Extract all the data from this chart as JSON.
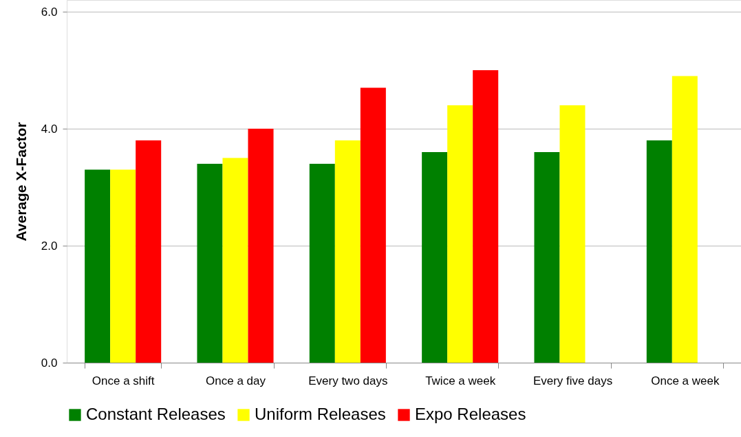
{
  "chart_data": {
    "type": "bar",
    "ylabel": "Average X-Factor",
    "categories": [
      "Once a shift",
      "Once a day",
      "Every two days",
      "Twice a week",
      "Every five days",
      "Once a week"
    ],
    "series": [
      {
        "name": "Constant Releases",
        "color": "#008000",
        "values": [
          3.3,
          3.4,
          3.4,
          3.6,
          3.6,
          3.8
        ]
      },
      {
        "name": "Uniform Releases",
        "color": "#ffff00",
        "values": [
          3.3,
          3.5,
          3.8,
          4.4,
          4.4,
          4.9
        ]
      },
      {
        "name": "Expo Releases",
        "color": "#ff0000",
        "values": [
          3.8,
          4.0,
          4.7,
          5.0,
          null,
          null
        ]
      }
    ],
    "ylim": [
      0,
      6.2
    ],
    "yticks": [
      {
        "value": 0,
        "label": "0.0"
      },
      {
        "value": 2,
        "label": "2.0"
      },
      {
        "value": 4,
        "label": "4.0"
      },
      {
        "value": 6,
        "label": "6.0"
      }
    ],
    "grid": "y",
    "legend": "bottom"
  }
}
